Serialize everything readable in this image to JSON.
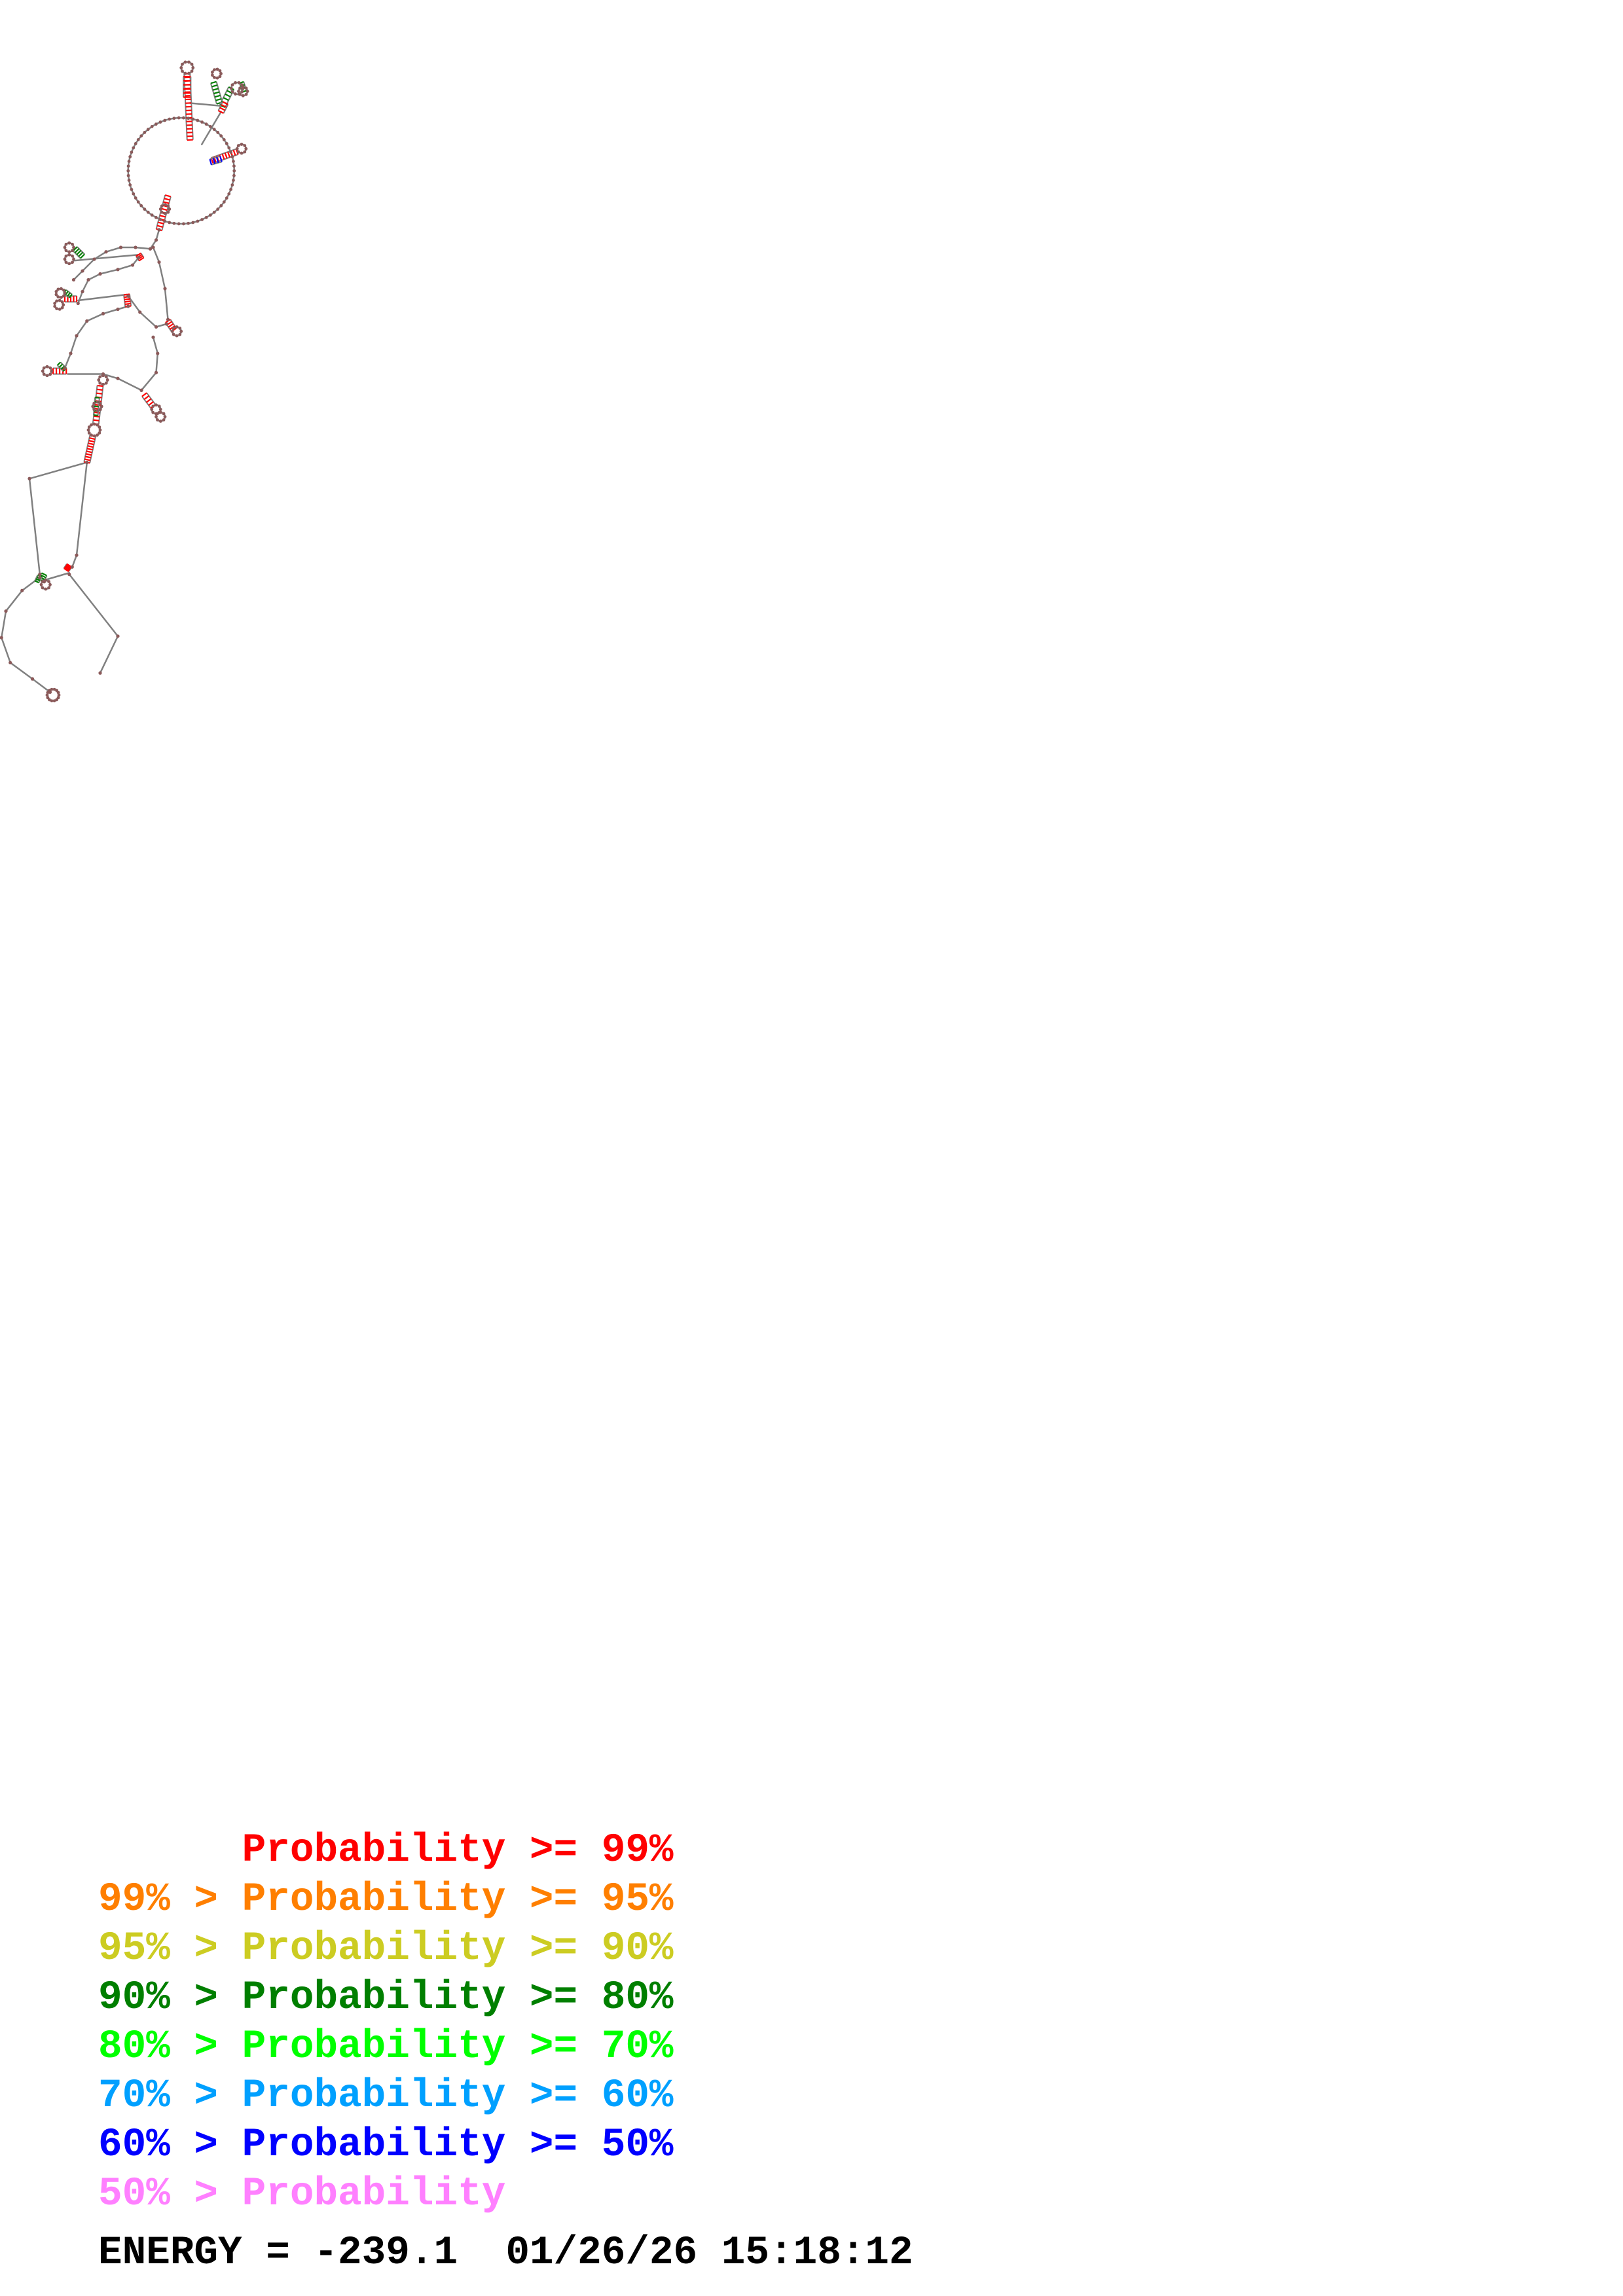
{
  "legend": [
    {
      "text": "      Probability >= 99%",
      "color": "#ff0000"
    },
    {
      "text": "99% > Probability >= 95%",
      "color": "#ff7f00"
    },
    {
      "text": "95% > Probability >= 90%",
      "color": "#cccc22"
    },
    {
      "text": "90% > Probability >= 80%",
      "color": "#007f00"
    },
    {
      "text": "80% > Probability >= 70%",
      "color": "#00ff00"
    },
    {
      "text": "70% > Probability >= 60%",
      "color": "#00a0ff"
    },
    {
      "text": "60% > Probability >= 50%",
      "color": "#0000ff"
    },
    {
      "text": "50% > Probability",
      "color": "#ff80ff"
    }
  ],
  "energy": {
    "label": "ENERGY = -239.1",
    "timestamp": "01/26/26 15:18:12"
  },
  "colors": {
    "backbone": "#808080",
    "pair_high": "#ff0000",
    "pair_mid": "#007f00",
    "pair_low": "#0000ff",
    "base": "#8b5a5a"
  }
}
